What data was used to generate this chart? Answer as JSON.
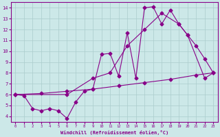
{
  "line1_x": [
    0,
    1,
    2,
    3,
    4,
    5,
    6,
    7,
    8,
    9,
    10,
    11,
    12,
    13,
    14,
    15,
    16,
    17,
    18,
    19,
    20,
    21,
    22,
    23
  ],
  "line1_y": [
    6.0,
    5.9,
    4.7,
    4.5,
    4.7,
    4.5,
    3.8,
    5.3,
    6.3,
    6.5,
    9.7,
    9.8,
    7.7,
    11.7,
    7.5,
    14.0,
    14.1,
    12.5,
    13.8,
    12.5,
    11.5,
    10.5,
    9.3,
    8.0
  ],
  "line2_x": [
    0,
    6,
    9,
    11,
    13,
    15,
    17,
    19,
    20,
    22,
    23
  ],
  "line2_y": [
    6.0,
    6.0,
    7.5,
    8.0,
    10.5,
    12.0,
    13.5,
    12.5,
    11.5,
    7.5,
    8.0
  ],
  "line3_x": [
    0,
    3,
    6,
    9,
    12,
    15,
    18,
    21,
    23
  ],
  "line3_y": [
    6.0,
    6.1,
    6.3,
    6.5,
    6.8,
    7.1,
    7.4,
    7.8,
    8.0
  ],
  "color": "#880088",
  "bg_color": "#cce8e8",
  "grid_color": "#aacccc",
  "xlabel": "Windchill (Refroidissement éolien,°C)",
  "xlim": [
    -0.5,
    23.5
  ],
  "ylim": [
    3.5,
    14.5
  ],
  "xticks": [
    0,
    1,
    2,
    3,
    4,
    5,
    6,
    7,
    8,
    9,
    10,
    11,
    12,
    13,
    14,
    15,
    16,
    17,
    18,
    19,
    20,
    21,
    22,
    23
  ],
  "yticks": [
    4,
    5,
    6,
    7,
    8,
    9,
    10,
    11,
    12,
    13,
    14
  ],
  "markersize": 2.5,
  "linewidth": 0.8
}
